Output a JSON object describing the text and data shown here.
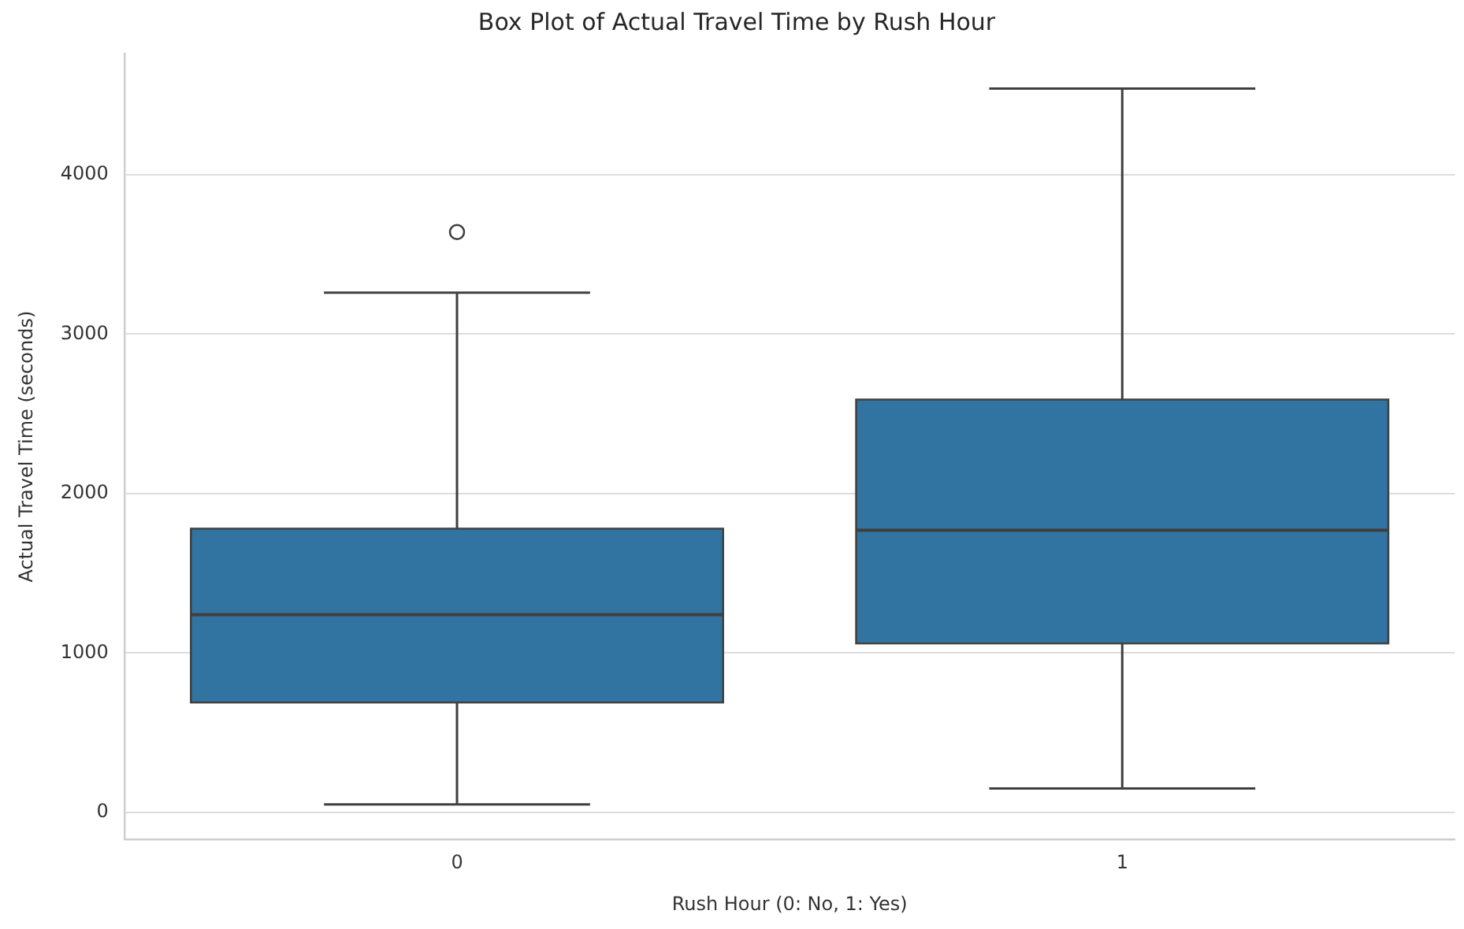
{
  "chart_data": {
    "type": "box",
    "title": "Box Plot of Actual Travel Time by Rush Hour",
    "xlabel": "Rush Hour (0: No, 1: Yes)",
    "ylabel": "Actual Travel Time (seconds)",
    "categories": [
      "0",
      "1"
    ],
    "color": "#3274a1",
    "boxes": [
      {
        "low": 50,
        "q1": 690,
        "median": 1240,
        "q3": 1780,
        "high": 3260,
        "outliers": [
          3640
        ]
      },
      {
        "low": 150,
        "q1": 1060,
        "median": 1770,
        "q3": 2590,
        "high": 4540
      }
    ],
    "ylim": [
      -170,
      4760
    ],
    "yticks": [
      0,
      1000,
      2000,
      3000,
      4000
    ],
    "grid": "y",
    "legend": false
  }
}
